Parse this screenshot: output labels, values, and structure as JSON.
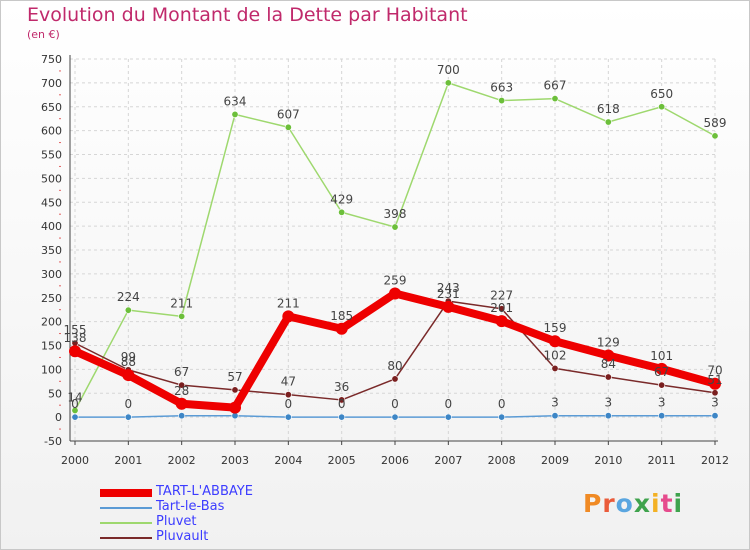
{
  "title": "Evolution du Montant de la Dette par Habitant",
  "subtitle": "(en €)",
  "logo": {
    "text": "Proxiti",
    "colors": [
      "#f08a24",
      "#ea5b3a",
      "#5aa6e0",
      "#3fa34d",
      "#f3b125",
      "#e64b8d",
      "#3fa34d"
    ]
  },
  "chart_data": {
    "type": "line",
    "x": [
      "2000",
      "2001",
      "2002",
      "2003",
      "2004",
      "2005",
      "2006",
      "2007",
      "2008",
      "2009",
      "2010",
      "2011",
      "2012"
    ],
    "ylim": [
      -50,
      750
    ],
    "yticks": [
      -50,
      0,
      50,
      100,
      150,
      200,
      250,
      300,
      350,
      400,
      450,
      500,
      550,
      600,
      650,
      700,
      750
    ],
    "grid": true,
    "legend_position": "bottom-left",
    "series": [
      {
        "name": "TART-L'ABBAYE",
        "color": "#ee0000",
        "width": 8,
        "values": [
          138,
          88,
          28,
          20,
          211,
          185,
          259,
          231,
          201,
          159,
          129,
          101,
          70
        ],
        "labels": [
          "138",
          "88",
          "28",
          "",
          "211",
          "185",
          "259",
          "231",
          "201",
          "159",
          "129",
          "101",
          "70"
        ]
      },
      {
        "name": "Tart-le-Bas",
        "color": "#5b9bd5",
        "marker": "#3d86c6",
        "width": 1.5,
        "values": [
          0,
          0,
          3,
          3,
          0,
          0,
          0,
          0,
          0,
          3,
          3,
          3,
          3
        ],
        "labels": [
          "0",
          "0",
          "",
          "",
          "0",
          "0",
          "0",
          "0",
          "0",
          "3",
          "3",
          "3",
          "3"
        ]
      },
      {
        "name": "Pluvet",
        "color": "#9ed86e",
        "marker": "#6cbf3a",
        "width": 1.5,
        "values": [
          14,
          224,
          211,
          634,
          607,
          429,
          398,
          700,
          663,
          667,
          618,
          650,
          589
        ],
        "labels": [
          "14",
          "224",
          "211",
          "634",
          "607",
          "429",
          "398",
          "700",
          "663",
          "667",
          "618",
          "650",
          "589"
        ]
      },
      {
        "name": "Pluvault",
        "color": "#7a2a2a",
        "marker": "#7a1f1f",
        "width": 1.5,
        "values": [
          155,
          99,
          67,
          57,
          47,
          36,
          80,
          243,
          227,
          102,
          84,
          67,
          51
        ],
        "labels": [
          "155",
          "99",
          "67",
          "57",
          "47",
          "36",
          "80",
          "243",
          "227",
          "102",
          "84",
          "67",
          "51"
        ]
      }
    ]
  }
}
